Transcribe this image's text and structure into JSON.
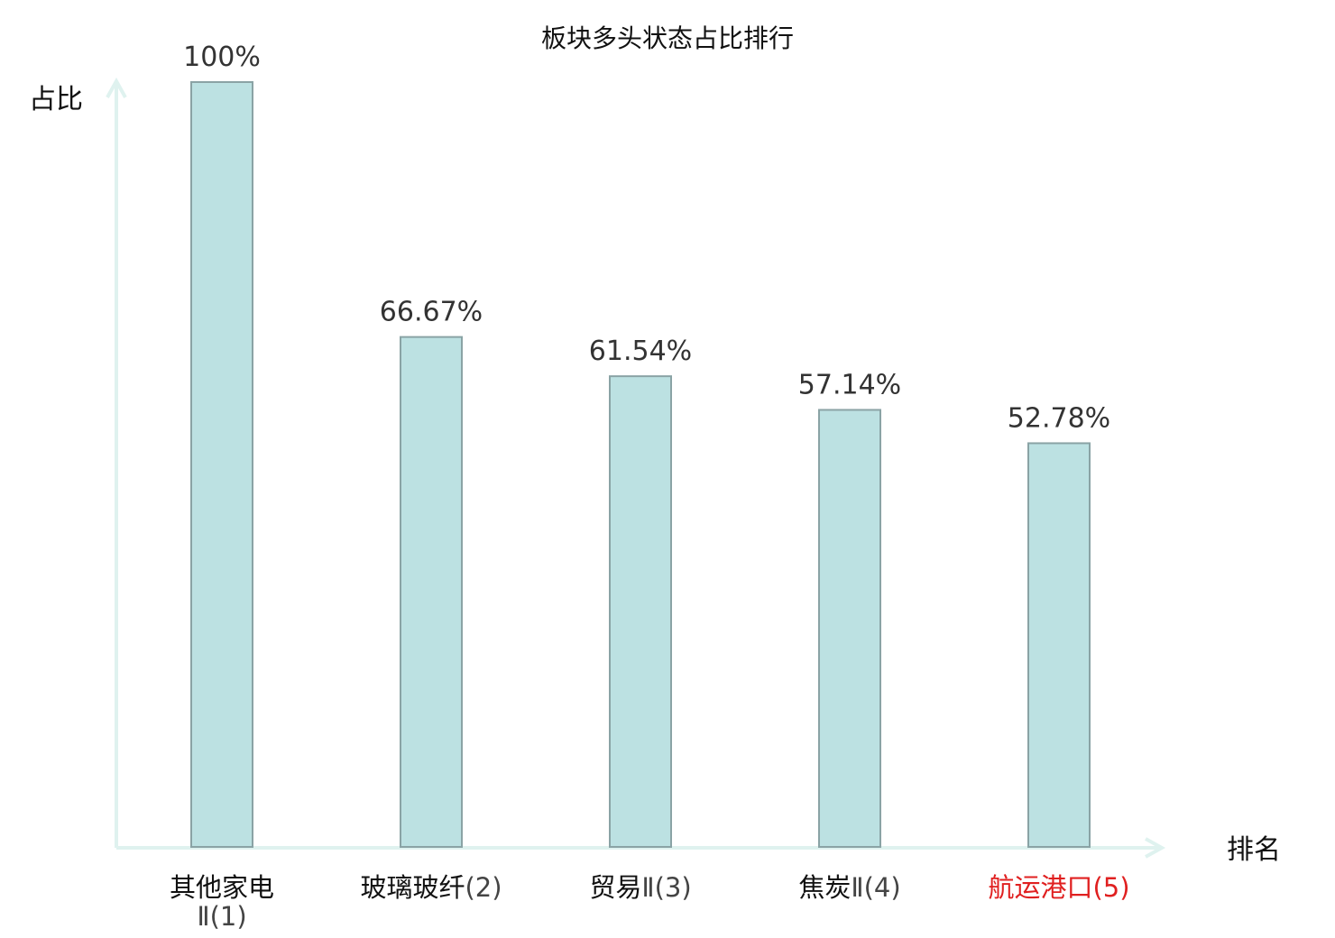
{
  "chart_data": {
    "type": "bar",
    "title": "板块多头状态占比排行",
    "xlabel": "排名",
    "ylabel": "占比",
    "ylim": [
      0,
      100
    ],
    "grid": false,
    "categories": [
      {
        "name": "其他家电",
        "rank": "Ⅱ(1)",
        "highlight": false
      },
      {
        "name": "玻璃玻纤",
        "rank": "(2)",
        "highlight": false
      },
      {
        "name": "贸易",
        "rank": "Ⅱ(3)",
        "highlight": false
      },
      {
        "name": "焦炭",
        "rank": "Ⅱ(4)",
        "highlight": false
      },
      {
        "name": "航运港口",
        "rank": "(5)",
        "highlight": true
      }
    ],
    "values": [
      100,
      66.67,
      61.54,
      57.14,
      52.78
    ],
    "value_labels": [
      "100%",
      "66.67%",
      "61.54%",
      "57.14%",
      "52.78%"
    ]
  },
  "colors": {
    "bar_fill": "#bce1e2",
    "bar_stroke": "#8aa3a5",
    "axis": "#dff2ef",
    "category_text": "#111111",
    "rank_text": "#444444",
    "highlight_text": "#e02020"
  }
}
